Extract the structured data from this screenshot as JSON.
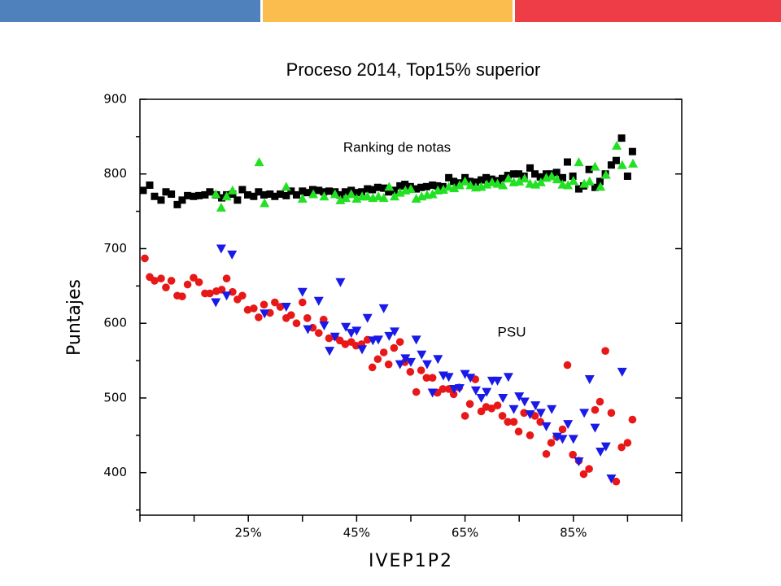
{
  "chart_data": {
    "type": "scatter",
    "title": "Proceso 2014, Top15% superior",
    "xlabel": "IVEP1P2",
    "ylabel": "Puntajes",
    "annotations": [
      "Ranking de notas",
      "PSU"
    ],
    "xlim": [
      5,
      105
    ],
    "ylim": [
      343,
      900
    ],
    "xticks": [
      {
        "value": 25,
        "label": "25%"
      },
      {
        "value": 45,
        "label": "45%"
      },
      {
        "value": 65,
        "label": "65%"
      },
      {
        "value": 85,
        "label": "85%"
      }
    ],
    "xminorticks": [
      5,
      15,
      35,
      55,
      75,
      95,
      105
    ],
    "yticks": [
      400,
      500,
      600,
      700,
      800,
      900
    ],
    "yminorticks": [
      350,
      450,
      550,
      650,
      750,
      850
    ],
    "series": [
      {
        "color": "#000000",
        "marker": "square",
        "x": [
          5.6,
          6.8,
          7.7,
          8.9,
          9.8,
          10.8,
          11.9,
          12.8,
          13.8,
          14.9,
          15.9,
          17,
          17.9,
          19.1,
          20.1,
          21,
          22.1,
          23,
          23.9,
          24.9,
          26,
          26.9,
          27.9,
          29,
          29.9,
          30.9,
          32,
          32.9,
          33.9,
          35,
          35.9,
          36.9,
          38,
          38.9,
          39.9,
          41,
          41.9,
          42.9,
          44,
          44.9,
          45.9,
          47,
          47.9,
          48.9,
          50,
          50.9,
          51.9,
          53,
          53.9,
          54.9,
          56,
          56.9,
          57.9,
          59,
          59.9,
          60.9,
          62,
          62.9,
          63.9,
          65,
          65.9,
          66.9,
          68,
          68.9,
          69.9,
          71,
          71.9,
          72.9,
          74,
          74.9,
          75.9,
          77,
          77.9,
          78.9,
          80,
          80.9,
          81.9,
          83,
          83.9,
          84.9,
          86,
          86.9,
          87.9,
          89,
          89.9,
          90.9,
          92,
          92.9,
          93.9,
          95,
          95.9
        ],
        "values": [
          778,
          785,
          770,
          765,
          776,
          773,
          759,
          765,
          771,
          770,
          771,
          772,
          776,
          772,
          768,
          772,
          773,
          765,
          779,
          772,
          770,
          776,
          772,
          773,
          770,
          773,
          771,
          777,
          772,
          777,
          775,
          779,
          778,
          776,
          777,
          776,
          772,
          776,
          778,
          775,
          776,
          780,
          779,
          782,
          781,
          776,
          778,
          784,
          786,
          783,
          780,
          782,
          783,
          785,
          784,
          783,
          795,
          790,
          788,
          795,
          790,
          789,
          792,
          795,
          793,
          791,
          794,
          798,
          800,
          800,
          797,
          808,
          800,
          796,
          800,
          800,
          802,
          795,
          816,
          797,
          780,
          784,
          806,
          782,
          790,
          800,
          812,
          818,
          848,
          797,
          830
        ]
      },
      {
        "color": "#22e022",
        "marker": "triangle",
        "x": [
          19,
          20,
          21,
          22.1,
          27,
          28,
          32,
          35,
          37,
          39,
          41,
          42,
          43,
          44,
          45,
          46,
          47,
          48,
          49,
          50,
          51,
          52,
          53,
          54,
          55,
          56,
          57,
          58,
          59,
          60,
          61,
          62,
          63,
          64,
          65,
          66,
          67,
          68,
          69,
          70,
          71,
          72,
          73,
          74,
          75,
          76,
          77,
          78,
          79,
          80,
          81,
          82,
          83,
          84,
          85,
          86,
          87,
          88,
          89,
          90,
          91,
          93,
          94,
          96
        ],
        "values": [
          773,
          755,
          770,
          778,
          816,
          761,
          783,
          767,
          773,
          770,
          773,
          765,
          768,
          773,
          767,
          770,
          770,
          768,
          770,
          768,
          783,
          770,
          775,
          778,
          780,
          767,
          770,
          772,
          773,
          778,
          779,
          783,
          781,
          785,
          790,
          785,
          782,
          783,
          786,
          789,
          787,
          785,
          794,
          789,
          790,
          794,
          787,
          786,
          789,
          795,
          797,
          793,
          786,
          785,
          791,
          816,
          787,
          790,
          810,
          783,
          799,
          838,
          812,
          814
        ]
      },
      {
        "color": "#e81818",
        "marker": "circle",
        "x": [
          5.9,
          6.8,
          7.7,
          8.9,
          9.8,
          10.8,
          11.9,
          12.8,
          13.8,
          14.9,
          15.9,
          17,
          17.9,
          19.1,
          20.1,
          21,
          22.1,
          23,
          23.9,
          24.9,
          26,
          26.9,
          27.9,
          29,
          29.9,
          30.9,
          32,
          32.9,
          33.9,
          35,
          35.9,
          36.9,
          38,
          38.9,
          39.9,
          41,
          41.9,
          42.9,
          44,
          44.9,
          45.9,
          47,
          47.9,
          48.9,
          50,
          50.9,
          51.9,
          53,
          53.9,
          54.9,
          56,
          56.9,
          57.9,
          59,
          59.9,
          60.9,
          62,
          62.9,
          63.9,
          65,
          65.9,
          66.9,
          68,
          68.9,
          69.9,
          71,
          71.9,
          72.9,
          74,
          74.9,
          75.9,
          77,
          77.9,
          78.9,
          80,
          80.9,
          81.9,
          83,
          83.9,
          84.9,
          86,
          86.9,
          87.9,
          89,
          89.9,
          90.9,
          92,
          92.9,
          93.9,
          95,
          95.9
        ],
        "values": [
          687,
          662,
          657,
          660,
          648,
          657,
          637,
          636,
          652,
          661,
          655,
          640,
          640,
          643,
          645,
          660,
          642,
          632,
          637,
          618,
          620,
          608,
          625,
          614,
          628,
          622,
          607,
          611,
          600,
          628,
          607,
          594,
          587,
          605,
          580,
          582,
          577,
          572,
          575,
          570,
          572,
          578,
          541,
          552,
          561,
          545,
          567,
          575,
          548,
          535,
          508,
          537,
          527,
          527,
          507,
          512,
          512,
          505,
          514,
          476,
          492,
          525,
          482,
          488,
          486,
          490,
          476,
          468,
          468,
          455,
          480,
          450,
          476,
          468,
          425,
          440,
          448,
          458,
          544,
          424,
          416,
          398,
          405,
          484,
          495,
          563,
          480,
          388,
          434,
          440,
          471
        ]
      },
      {
        "color": "#1a1ae8",
        "marker": "triangle-down",
        "x": [
          19,
          20,
          21,
          22,
          28,
          32,
          35,
          36,
          38,
          39,
          40,
          41,
          42,
          43,
          44,
          45,
          46,
          47,
          48,
          49,
          50,
          51,
          52,
          53,
          54,
          55,
          56,
          57,
          58,
          59,
          60,
          61,
          62,
          63,
          64,
          65,
          66,
          67,
          68,
          69,
          70,
          71,
          72,
          73,
          74,
          75,
          76,
          77,
          78,
          79,
          80,
          81,
          82,
          83,
          84,
          85,
          86,
          87,
          88,
          89,
          90,
          91,
          92,
          94
        ],
        "values": [
          628,
          700,
          637,
          692,
          613,
          622,
          642,
          592,
          630,
          597,
          563,
          582,
          655,
          595,
          587,
          590,
          565,
          607,
          577,
          578,
          620,
          583,
          589,
          545,
          553,
          548,
          578,
          558,
          545,
          507,
          552,
          530,
          528,
          512,
          513,
          532,
          527,
          510,
          500,
          508,
          523,
          523,
          500,
          528,
          485,
          502,
          495,
          478,
          490,
          480,
          462,
          485,
          448,
          445,
          465,
          445,
          415,
          480,
          525,
          460,
          428,
          435,
          392,
          535
        ]
      }
    ]
  }
}
